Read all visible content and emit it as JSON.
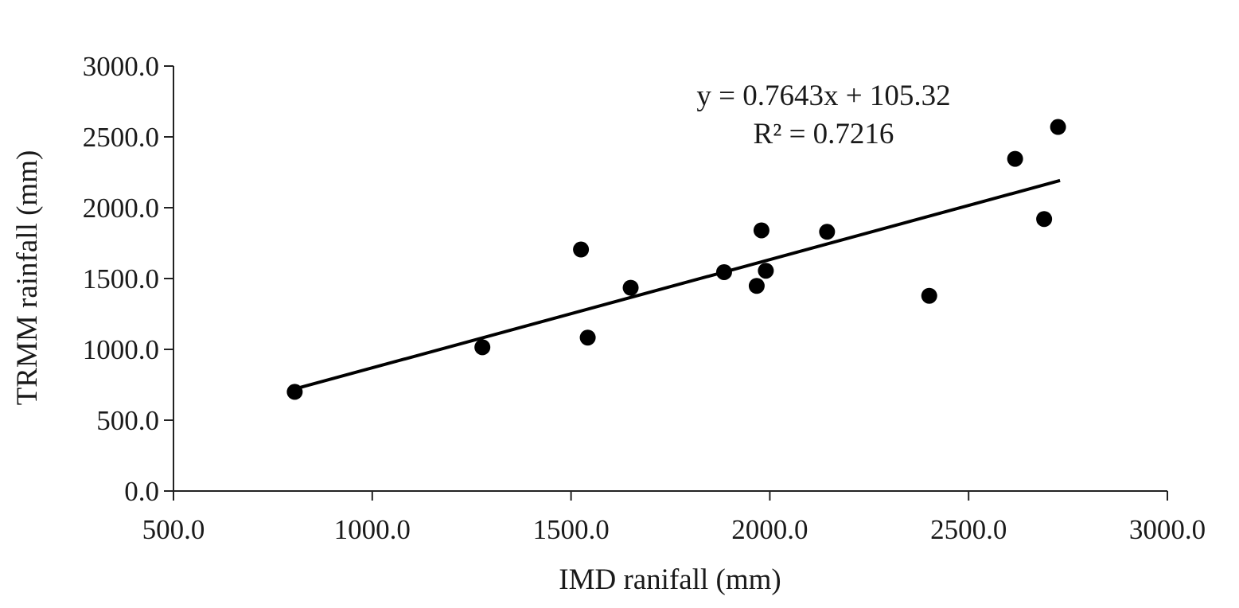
{
  "chart_data": {
    "type": "scatter",
    "xlabel": "IMD ranifall (mm)",
    "ylabel": "TRMM rainfall (mm)",
    "xlim": [
      500,
      3000
    ],
    "ylim": [
      0,
      3000
    ],
    "x_ticks": [
      "500.0",
      "1000.0",
      "1500.0",
      "2000.0",
      "2500.0",
      "3000.0"
    ],
    "y_ticks": [
      "0.0",
      "500.0",
      "1000.0",
      "1500.0",
      "2000.0",
      "2500.0",
      "3000.0"
    ],
    "grid": false,
    "legend": "none",
    "marker_color": "#000000",
    "series": [
      {
        "points": [
          [
            805,
            700
          ],
          [
            1277,
            1015
          ],
          [
            1525,
            1705
          ],
          [
            1542,
            1083
          ],
          [
            1650,
            1435
          ],
          [
            1885,
            1545
          ],
          [
            1967,
            1448
          ],
          [
            1979,
            1840
          ],
          [
            1990,
            1555
          ],
          [
            2144,
            1830
          ],
          [
            2401,
            1378
          ],
          [
            2617,
            2345
          ],
          [
            2690,
            1920
          ],
          [
            2725,
            2570
          ]
        ]
      }
    ],
    "trendline": {
      "slope": 0.7643,
      "intercept": 105.32,
      "x_range": [
        805,
        2730
      ],
      "equation": "y = 0.7643x + 105.32",
      "r_squared": "R² = 0.7216"
    }
  }
}
